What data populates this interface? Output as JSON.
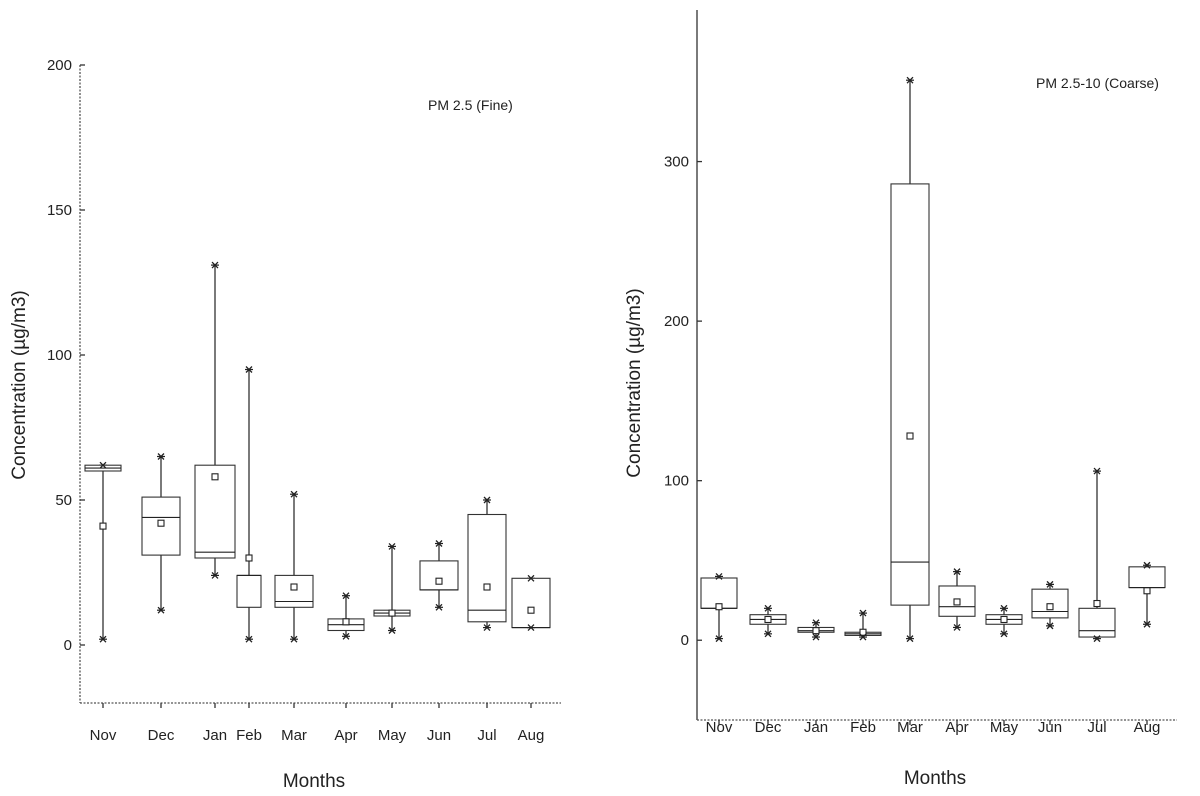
{
  "chart_data": [
    {
      "type": "box",
      "annotation": "PM 2.5 (Fine)",
      "xlabel": "Months",
      "ylabel": "Concentration (µg/m3)",
      "ylim": [
        -20,
        200
      ],
      "yticks": [
        "0",
        "50",
        "100",
        "150",
        "200"
      ],
      "categories": [
        "Nov",
        "Dec",
        "Jan",
        "Feb",
        "Mar",
        "Apr",
        "May",
        "Jun",
        "Jul",
        "Aug"
      ],
      "boxes": [
        {
          "category": "Nov",
          "min": 2,
          "q1": 60,
          "median": 61,
          "q3": 62,
          "max": 62,
          "mean": 41
        },
        {
          "category": "Dec",
          "min": 12,
          "q1": 31,
          "median": 44,
          "q3": 51,
          "max": 65,
          "mean": 42
        },
        {
          "category": "Jan",
          "min": 24,
          "q1": 30,
          "median": 32,
          "q3": 62,
          "max": 131,
          "mean": 58
        },
        {
          "category": "Feb",
          "min": 2,
          "q1": 13,
          "median": 24,
          "q3": 24,
          "max": 95,
          "mean": 30
        },
        {
          "category": "Mar",
          "min": 2,
          "q1": 13,
          "median": 15,
          "q3": 24,
          "max": 52,
          "mean": 20
        },
        {
          "category": "Apr",
          "min": 3,
          "q1": 5,
          "median": 7,
          "q3": 9,
          "max": 17,
          "mean": 8
        },
        {
          "category": "May",
          "min": 5,
          "q1": 10,
          "median": 11,
          "q3": 12,
          "max": 34,
          "mean": 11
        },
        {
          "category": "Jun",
          "min": 13,
          "q1": 19,
          "median": 19,
          "q3": 29,
          "max": 35,
          "mean": 22
        },
        {
          "category": "Jul",
          "min": 6,
          "q1": 8,
          "median": 12,
          "q3": 45,
          "max": 50,
          "mean": 20
        },
        {
          "category": "Aug",
          "min": 6,
          "q1": 6,
          "median": 6,
          "q3": 23,
          "max": 23,
          "mean": 12
        }
      ]
    },
    {
      "type": "box",
      "annotation": "PM 2.5-10 (Coarse)",
      "xlabel": "Months",
      "ylabel": "Concentration (µg/m3)",
      "ylim": [
        -50,
        395
      ],
      "yticks": [
        "0",
        "100",
        "200",
        "300"
      ],
      "categories": [
        "Nov",
        "Dec",
        "Jan",
        "Feb",
        "Mar",
        "Apr",
        "May",
        "Jun",
        "Jul",
        "Aug"
      ],
      "boxes": [
        {
          "category": "Nov",
          "min": 1,
          "q1": 20,
          "median": 20,
          "q3": 39,
          "max": 40,
          "mean": 21
        },
        {
          "category": "Dec",
          "min": 4,
          "q1": 10,
          "median": 13,
          "q3": 16,
          "max": 20,
          "mean": 13
        },
        {
          "category": "Jan",
          "min": 2,
          "q1": 5,
          "median": 6,
          "q3": 8,
          "max": 11,
          "mean": 6
        },
        {
          "category": "Feb",
          "min": 2,
          "q1": 3,
          "median": 4,
          "q3": 5,
          "max": 17,
          "mean": 5
        },
        {
          "category": "Mar",
          "min": 1,
          "q1": 22,
          "median": 49,
          "q3": 286,
          "max": 351,
          "mean": 128
        },
        {
          "category": "Apr",
          "min": 8,
          "q1": 15,
          "median": 21,
          "q3": 34,
          "max": 43,
          "mean": 24
        },
        {
          "category": "May",
          "min": 4,
          "q1": 10,
          "median": 13,
          "q3": 16,
          "max": 20,
          "mean": 13
        },
        {
          "category": "Jun",
          "min": 9,
          "q1": 14,
          "median": 18,
          "q3": 32,
          "max": 35,
          "mean": 21
        },
        {
          "category": "Jul",
          "min": 1,
          "q1": 2,
          "median": 6,
          "q3": 20,
          "max": 106,
          "mean": 23
        },
        {
          "category": "Aug",
          "min": 10,
          "q1": 33,
          "median": 33,
          "q3": 46,
          "max": 47,
          "mean": 31
        }
      ]
    }
  ]
}
